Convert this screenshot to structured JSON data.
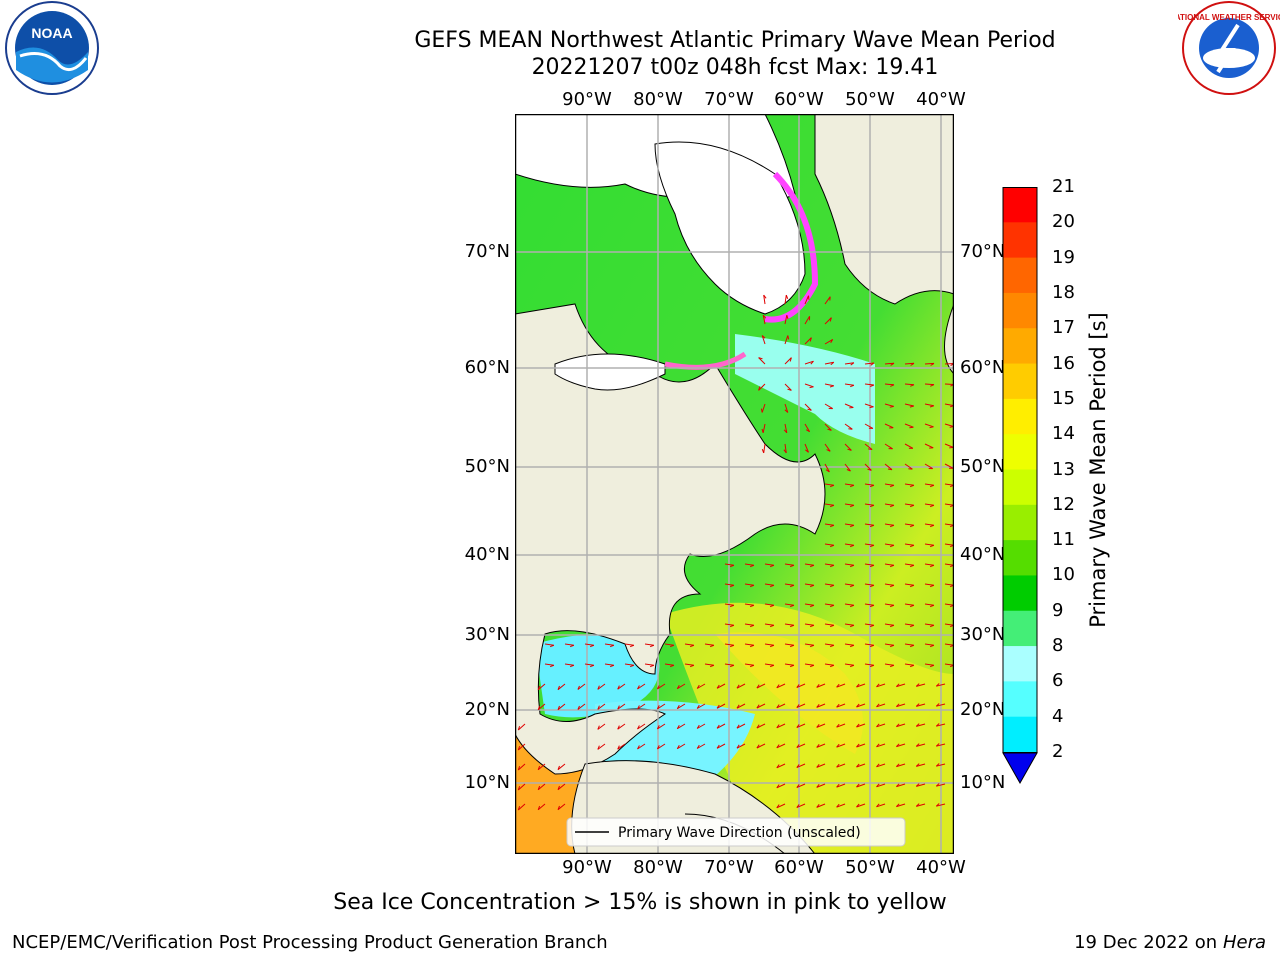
{
  "title": {
    "line1": "GEFS MEAN Northwest Atlantic Primary Wave Mean Period",
    "line2": "20221207 t00z 048h fcst   Max: 19.41"
  },
  "map": {
    "lon_labels": [
      "90°W",
      "80°W",
      "70°W",
      "60°W",
      "50°W",
      "40°W"
    ],
    "lat_labels": [
      "70°N",
      "60°N",
      "50°N",
      "40°N",
      "30°N",
      "20°N",
      "10°N"
    ],
    "legend_label": "Primary Wave Direction (unscaled)",
    "colors": {
      "ocean_base": "#33dd33",
      "land": "#efeedd",
      "ice_free": "#ffffff",
      "arrow": "#e00000",
      "grid": "#b0b0b0"
    }
  },
  "colorbar": {
    "title": "Primary Wave Mean Period [s]",
    "tick_labels": [
      "21",
      "20",
      "19",
      "18",
      "17",
      "16",
      "15",
      "14",
      "13",
      "12",
      "11",
      "10",
      "9",
      "8",
      "6",
      "4",
      "2"
    ],
    "colors": [
      "#ff0000",
      "#ff3300",
      "#ff6600",
      "#ff8800",
      "#ffaa00",
      "#ffcc00",
      "#ffee00",
      "#eeff00",
      "#ccff00",
      "#99ee00",
      "#55dd00",
      "#00cc00",
      "#44ee77",
      "#aaffff",
      "#55ffff",
      "#00eeff",
      "#0088ff"
    ],
    "extend_color": "#0000ee"
  },
  "caption": "Sea Ice Concentration > 15% is shown in pink to yellow",
  "footer": {
    "left": "NCEP/EMC/Verification Post Processing Product Generation Branch",
    "right_date": "19 Dec 2022 on",
    "right_host": "Hera"
  },
  "logos": {
    "noaa_text": "NOAA",
    "nws_text": "NATIONAL WEATHER SERVICE"
  }
}
